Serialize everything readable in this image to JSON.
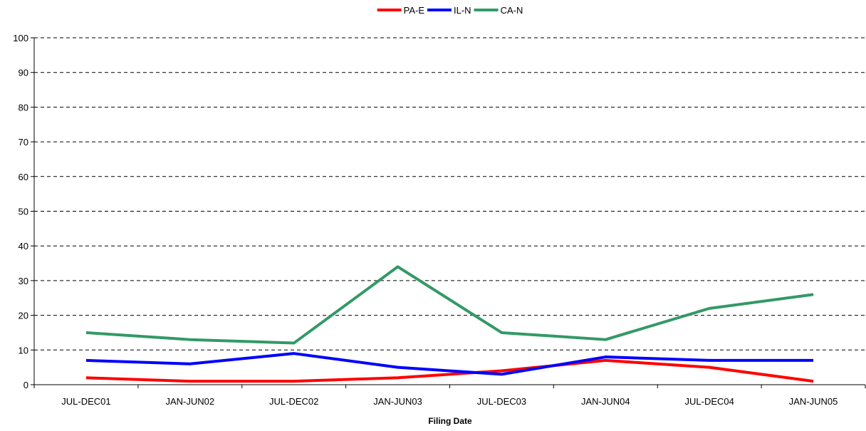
{
  "chart_data": {
    "type": "line",
    "categories": [
      "JUL-DEC01",
      "JAN-JUN02",
      "JUL-DEC02",
      "JAN-JUN03",
      "JUL-DEC03",
      "JAN-JUN04",
      "JUL-DEC04",
      "JAN-JUN05"
    ],
    "series": [
      {
        "name": "PA-E",
        "color": "#ff0000",
        "values": [
          2,
          1,
          1,
          2,
          4,
          7,
          5,
          1
        ]
      },
      {
        "name": "IL-N",
        "color": "#0000ff",
        "values": [
          7,
          6,
          9,
          5,
          3,
          8,
          7,
          7
        ]
      },
      {
        "name": "CA-N",
        "color": "#339966",
        "values": [
          15,
          13,
          12,
          34,
          15,
          13,
          22,
          26
        ]
      }
    ],
    "title": "",
    "xlabel": "Filing Date",
    "ylabel": "",
    "ylim": [
      0,
      100
    ],
    "yticks": [
      "0",
      "10",
      "20",
      "30",
      "40",
      "50",
      "60",
      "70",
      "80",
      "90",
      "100"
    ],
    "grid": "horizontal dashed",
    "legend_position": "top-center"
  }
}
